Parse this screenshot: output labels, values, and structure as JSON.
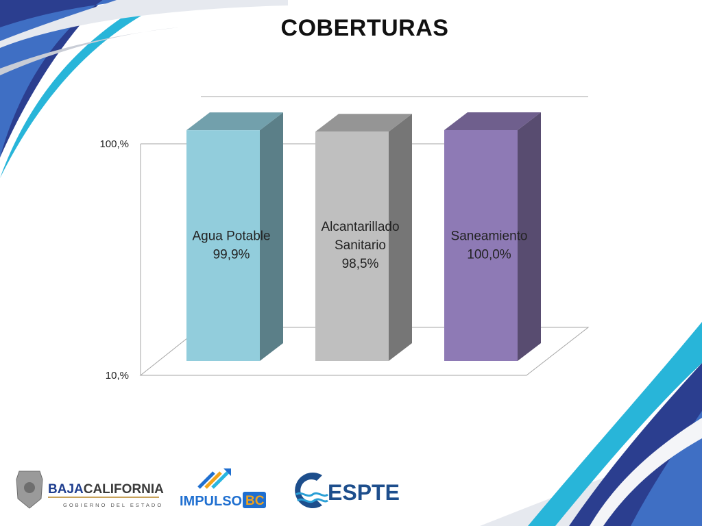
{
  "slide": {
    "title": "COBERTURAS"
  },
  "chart_data": {
    "type": "bar",
    "title": "COBERTURAS",
    "categories": [
      "Agua Potable",
      "Alcantarillado Sanitario",
      "Saneamiento"
    ],
    "category_label_lines": [
      [
        "Agua Potable"
      ],
      [
        "Alcantarillado",
        "Sanitario"
      ],
      [
        "Saneamiento"
      ]
    ],
    "values": [
      99.9,
      98.5,
      100.0
    ],
    "value_labels": [
      "99,9%",
      "98,5%",
      "100,0%"
    ],
    "colors": [
      "#92CDDC",
      "#BFBFBF",
      "#8E7AB5"
    ],
    "ytick_labels": [
      "100,%",
      "10,%"
    ],
    "yticks": [
      100,
      10
    ],
    "ylim": [
      10,
      100
    ],
    "log_scale": true,
    "style": "3d-column",
    "grid": true,
    "legend": "none"
  },
  "logos": {
    "baja": {
      "name_main": "BAJA",
      "name_accent": "CALIFORNIA",
      "subtitle": "GOBIERNO DEL ESTADO"
    },
    "impulso": {
      "name_main": "IMPULSO",
      "name_accent": "BC"
    },
    "espte": {
      "name": "ESPTE"
    }
  }
}
